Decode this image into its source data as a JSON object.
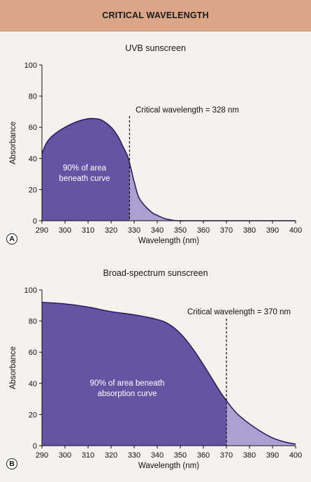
{
  "header": {
    "title": "CRITICAL WAVELENGTH"
  },
  "colors": {
    "header_bg": "#dba587",
    "area_main": "#6753a3",
    "area_tail": "#aca0d2",
    "curve": "#2c1f63",
    "bg": "#f5f1ec"
  },
  "chart_data": [
    {
      "type": "area",
      "panel_label": "A",
      "title": "UVB sunscreen",
      "xlabel": "Wavelength (nm)",
      "ylabel": "Absorbance",
      "xlim": [
        290,
        400
      ],
      "ylim": [
        0,
        100
      ],
      "x_ticks": [
        290,
        300,
        310,
        320,
        330,
        340,
        350,
        360,
        370,
        380,
        390,
        400
      ],
      "y_ticks": [
        0,
        20,
        40,
        60,
        80,
        100
      ],
      "x": [
        290,
        292,
        295,
        300,
        305,
        310,
        313,
        316,
        320,
        323,
        325,
        327,
        328,
        329,
        330,
        332,
        335,
        338,
        340,
        343,
        346,
        349,
        352,
        360,
        370,
        380,
        390,
        400
      ],
      "y": [
        43,
        50,
        55,
        60,
        63.5,
        65.5,
        65.5,
        64.5,
        60,
        54,
        48,
        42,
        37,
        31,
        25,
        15,
        9,
        5,
        3.5,
        1.5,
        0.5,
        0,
        0,
        0,
        0,
        0,
        0,
        0
      ],
      "critical_wavelength": 328,
      "critical_label": "Critical wavelength = 328 nm",
      "area_label_lines": [
        "90% of area",
        "beneath curve"
      ]
    },
    {
      "type": "area",
      "panel_label": "B",
      "title": "Broad-spectrum sunscreen",
      "xlabel": "Wavelength (nm)",
      "ylabel": "Absorbance",
      "xlim": [
        290,
        400
      ],
      "ylim": [
        0,
        100
      ],
      "x_ticks": [
        290,
        300,
        310,
        320,
        330,
        340,
        350,
        360,
        370,
        380,
        390,
        400
      ],
      "y_ticks": [
        0,
        20,
        40,
        60,
        80,
        100
      ],
      "x": [
        290,
        300,
        310,
        320,
        330,
        340,
        345,
        350,
        355,
        360,
        365,
        368,
        370,
        372,
        375,
        380,
        385,
        390,
        395,
        400
      ],
      "y": [
        92,
        91,
        89,
        86,
        84,
        81,
        78,
        72,
        63,
        52,
        40,
        33,
        29,
        25,
        20,
        14,
        9,
        5,
        2.5,
        1
      ],
      "critical_wavelength": 370,
      "critical_label": "Critical wavelength = 370 nm",
      "area_label_lines": [
        "90% of area beneath",
        "absorption curve"
      ]
    }
  ]
}
